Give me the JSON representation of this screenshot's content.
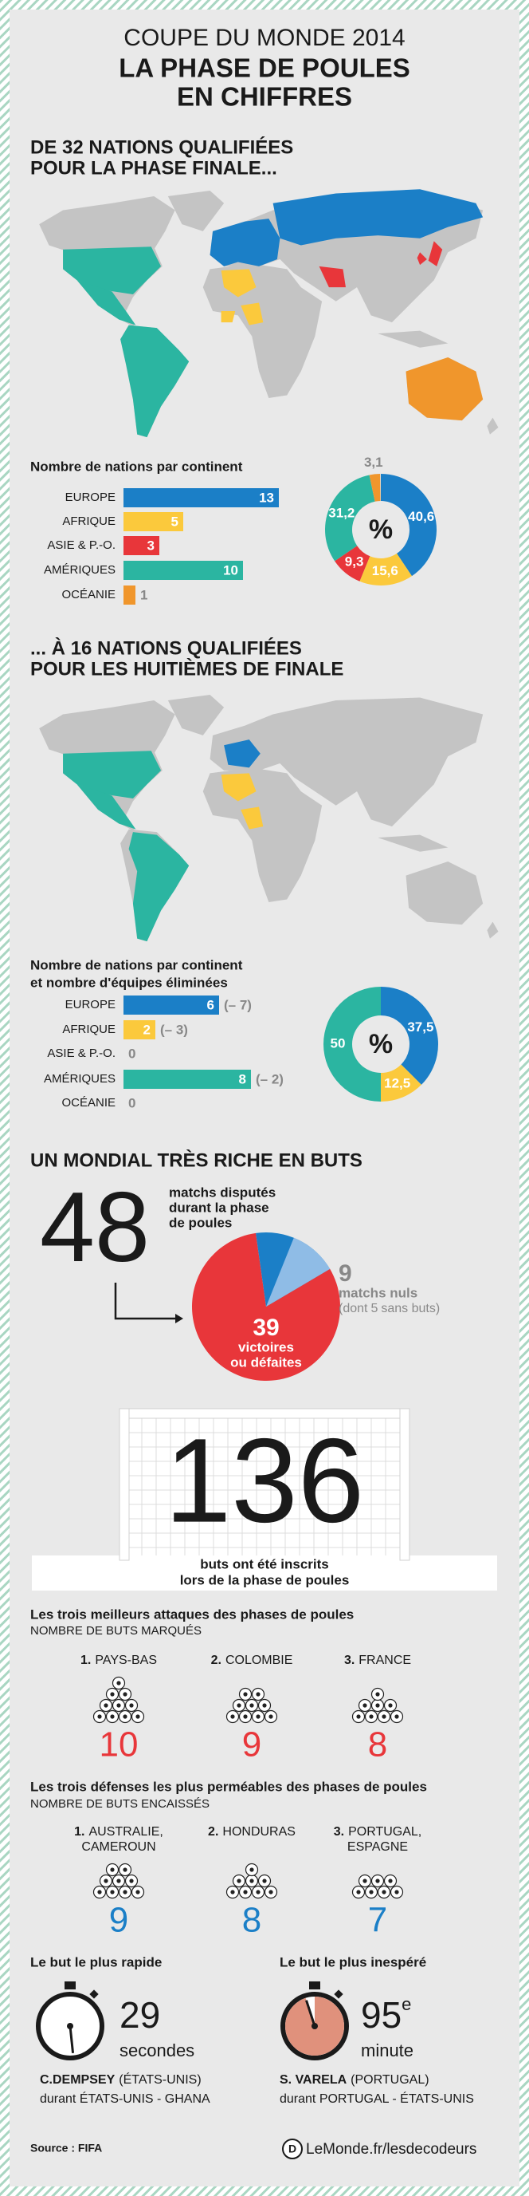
{
  "header": {
    "kicker": "COUPE DU MONDE 2014",
    "title_line1": "LA PHASE DE POULES",
    "title_line2": "EN CHIFFRES"
  },
  "section1": {
    "heading_line1": "DE 32 NATIONS QUALIFIÉES",
    "heading_line2": "POUR LA PHASE FINALE..."
  },
  "section2": {
    "heading_line1": "... À 16 NATIONS QUALIFIÉES",
    "heading_line2": "POUR LES HUITIÈMES DE FINALE"
  },
  "chart_data": [
    {
      "type": "bar",
      "orientation": "horizontal",
      "title": "Nombre de nations par continent",
      "categories": [
        "EUROPE",
        "AFRIQUE",
        "ASIE & P.-O.",
        "AMÉRIQUES",
        "OCÉANIE"
      ],
      "values": [
        13,
        5,
        3,
        10,
        1
      ],
      "colors": [
        "#1b7fc7",
        "#fbc93c",
        "#e8363a",
        "#2bb5a1",
        "#f0962c"
      ]
    },
    {
      "type": "donut",
      "center_label": "%",
      "values": [
        40.6,
        15.6,
        9.3,
        31.2,
        3.1
      ],
      "value_labels": [
        "40,6",
        "15,6",
        "9,3",
        "31,2",
        "3,1"
      ],
      "colors": [
        "#1b7fc7",
        "#fbc93c",
        "#e8363a",
        "#2bb5a1",
        "#f0962c"
      ]
    },
    {
      "type": "bar",
      "orientation": "horizontal",
      "title": "Nombre de nations par continent",
      "subtitle": "et nombre d'équipes éliminées",
      "categories": [
        "EUROPE",
        "AFRIQUE",
        "ASIE & P.-O.",
        "AMÉRIQUES",
        "OCÉANIE"
      ],
      "values": [
        6,
        2,
        0,
        8,
        0
      ],
      "annotations": [
        "(– 7)",
        "(– 3)",
        null,
        "(– 2)",
        null
      ],
      "colors": [
        "#1b7fc7",
        "#fbc93c",
        "#e8363a",
        "#2bb5a1",
        "#f0962c"
      ]
    },
    {
      "type": "donut",
      "center_label": "%",
      "values": [
        37.5,
        12.5,
        50
      ],
      "value_labels": [
        "37,5",
        "12,5",
        "50"
      ],
      "colors": [
        "#1b7fc7",
        "#fbc93c",
        "#2bb5a1"
      ]
    },
    {
      "type": "pie",
      "title": "UN MONDIAL TRÈS RICHE EN BUTS",
      "total": 48,
      "total_lines": [
        "matchs disputés",
        "durant la phase",
        "de poules"
      ],
      "slices": [
        {
          "value": 39,
          "lines": [
            "victoires",
            "ou défaites"
          ],
          "color": "#e8363a"
        },
        {
          "value": 9,
          "lines": [
            "matchs nuls"
          ],
          "note_before": "(dont",
          "note_value": 5,
          "note_after": "sans buts)",
          "color": "#1b7fc7",
          "note_color": "#8fbce6"
        }
      ]
    }
  ],
  "goals": {
    "total": 136,
    "caption_line1": "buts ont été inscrits",
    "caption_line2": "lors de la phase de poules"
  },
  "attacks": {
    "title": "Les trois meilleurs attaques des phases de poules",
    "subtitle": "NOMBRE DE BUTS MARQUÉS",
    "color": "#e8363a",
    "teams": [
      {
        "rank": "1.",
        "name": [
          "PAYS-BAS"
        ],
        "goals": 10
      },
      {
        "rank": "2.",
        "name": [
          "COLOMBIE"
        ],
        "goals": 9
      },
      {
        "rank": "3.",
        "name": [
          "FRANCE"
        ],
        "goals": 8
      }
    ]
  },
  "defenses": {
    "title": "Les trois défenses les plus perméables des phases de poules",
    "subtitle": "NOMBRE DE BUTS ENCAISSÉS",
    "color": "#1b7fc7",
    "teams": [
      {
        "rank": "1.",
        "name": [
          "AUSTRALIE,",
          "CAMEROUN"
        ],
        "goals": 9
      },
      {
        "rank": "2.",
        "name": [
          "HONDURAS"
        ],
        "goals": 8
      },
      {
        "rank": "3.",
        "name": [
          "PORTUGAL,",
          "ESPAGNE"
        ],
        "goals": 7
      }
    ]
  },
  "fastest": {
    "title": "Le but le plus rapide",
    "value": 29,
    "unit": "secondes",
    "player": "C.DEMPSEY",
    "country": "(ÉTATS-UNIS)",
    "match": "durant ÉTATS-UNIS - GHANA"
  },
  "latest": {
    "title": "Le but le plus inespéré",
    "value": 95,
    "suffix": "e",
    "unit": "minute",
    "player": "S. VARELA",
    "country": "(PORTUGAL)",
    "match": "durant PORTUGAL - ÉTATS-UNIS"
  },
  "footer": {
    "source": "Source : FIFA",
    "logo": "D",
    "brand": "LeMonde.fr/lesdecodeurs"
  }
}
